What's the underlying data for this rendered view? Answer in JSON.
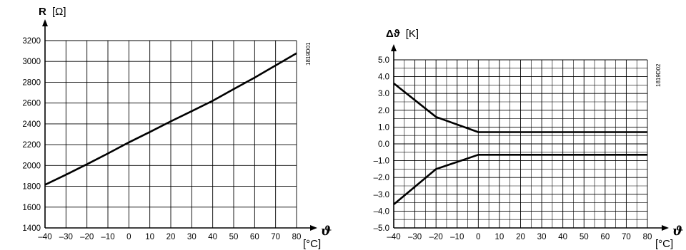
{
  "chart_data": [
    {
      "type": "line",
      "ylabel_symbol": "R",
      "ylabel_unit": "[Ω]",
      "xlabel_symbol": "ϑ",
      "xlabel_unit": "[°C]",
      "code": "1819D01",
      "grid": true,
      "xlim": [
        -40,
        80
      ],
      "ylim": [
        1400,
        3200
      ],
      "x_ticks": [
        "–40",
        "–30",
        "–20",
        "–10",
        "0",
        "10",
        "20",
        "30",
        "40",
        "50",
        "60",
        "70",
        "80"
      ],
      "x_tick_values": [
        -40,
        -30,
        -20,
        -10,
        0,
        10,
        20,
        30,
        40,
        50,
        60,
        70,
        80
      ],
      "y_ticks": [
        "1400",
        "1600",
        "1800",
        "2000",
        "2200",
        "2400",
        "2600",
        "2800",
        "3000",
        "3200"
      ],
      "y_tick_values": [
        1400,
        1600,
        1800,
        2000,
        2200,
        2400,
        2600,
        2800,
        3000,
        3200
      ],
      "series": [
        {
          "x": [
            -40,
            -30,
            -20,
            -10,
            0,
            10,
            20,
            30,
            40,
            50,
            60,
            70,
            80
          ],
          "y": [
            1815,
            1911,
            2012,
            2115,
            2222,
            2322,
            2424,
            2522,
            2622,
            2734,
            2844,
            2961,
            3079
          ]
        }
      ]
    },
    {
      "type": "line",
      "ylabel_symbol": "Δϑ",
      "ylabel_unit": "[K]",
      "xlabel_symbol": "ϑ",
      "xlabel_unit": "[°C]",
      "code": "1819D02",
      "grid": true,
      "xlim": [
        -40,
        80
      ],
      "ylim": [
        -5.0,
        5.0
      ],
      "x_ticks": [
        "–40",
        "–30",
        "–20",
        "–10",
        "0",
        "10",
        "20",
        "30",
        "40",
        "50",
        "60",
        "70",
        "80"
      ],
      "x_tick_values": [
        -40,
        -30,
        -20,
        -10,
        0,
        10,
        20,
        30,
        40,
        50,
        60,
        70,
        80
      ],
      "y_ticks": [
        "–5.0",
        "–4.0",
        "–3.0",
        "–2.0",
        "–1.0",
        "0.0",
        "1.0",
        "2.0",
        "3.0",
        "4.0",
        "5.0"
      ],
      "y_tick_values": [
        -5,
        -4,
        -3,
        -2,
        -1,
        0,
        1,
        2,
        3,
        4,
        5
      ],
      "series": [
        {
          "x": [
            -40,
            -20,
            0,
            80
          ],
          "y": [
            3.6,
            1.6,
            0.7,
            0.7
          ]
        },
        {
          "x": [
            -40,
            -20,
            0,
            80
          ],
          "y": [
            -3.6,
            -1.5,
            -0.65,
            -0.65
          ]
        }
      ]
    }
  ]
}
